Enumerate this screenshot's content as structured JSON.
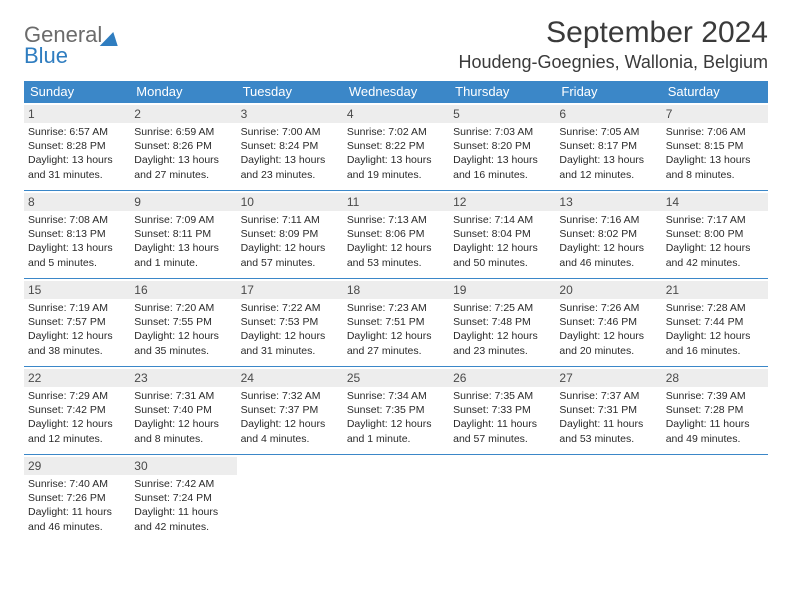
{
  "brand": {
    "line1": "General",
    "line2": "Blue"
  },
  "title": "September 2024",
  "location": "Houdeng-Goegnies, Wallonia, Belgium",
  "colors": {
    "header_bg": "#3b87c8",
    "header_text": "#ffffff",
    "day_band_bg": "#ededed",
    "text": "#2a2a2a",
    "brand_gray": "#6b6b6b",
    "brand_blue": "#2f7dc0"
  },
  "weekdays": [
    "Sunday",
    "Monday",
    "Tuesday",
    "Wednesday",
    "Thursday",
    "Friday",
    "Saturday"
  ],
  "weeks": [
    [
      {
        "n": "1",
        "sr": "Sunrise: 6:57 AM",
        "ss": "Sunset: 8:28 PM",
        "dl1": "Daylight: 13 hours",
        "dl2": "and 31 minutes."
      },
      {
        "n": "2",
        "sr": "Sunrise: 6:59 AM",
        "ss": "Sunset: 8:26 PM",
        "dl1": "Daylight: 13 hours",
        "dl2": "and 27 minutes."
      },
      {
        "n": "3",
        "sr": "Sunrise: 7:00 AM",
        "ss": "Sunset: 8:24 PM",
        "dl1": "Daylight: 13 hours",
        "dl2": "and 23 minutes."
      },
      {
        "n": "4",
        "sr": "Sunrise: 7:02 AM",
        "ss": "Sunset: 8:22 PM",
        "dl1": "Daylight: 13 hours",
        "dl2": "and 19 minutes."
      },
      {
        "n": "5",
        "sr": "Sunrise: 7:03 AM",
        "ss": "Sunset: 8:20 PM",
        "dl1": "Daylight: 13 hours",
        "dl2": "and 16 minutes."
      },
      {
        "n": "6",
        "sr": "Sunrise: 7:05 AM",
        "ss": "Sunset: 8:17 PM",
        "dl1": "Daylight: 13 hours",
        "dl2": "and 12 minutes."
      },
      {
        "n": "7",
        "sr": "Sunrise: 7:06 AM",
        "ss": "Sunset: 8:15 PM",
        "dl1": "Daylight: 13 hours",
        "dl2": "and 8 minutes."
      }
    ],
    [
      {
        "n": "8",
        "sr": "Sunrise: 7:08 AM",
        "ss": "Sunset: 8:13 PM",
        "dl1": "Daylight: 13 hours",
        "dl2": "and 5 minutes."
      },
      {
        "n": "9",
        "sr": "Sunrise: 7:09 AM",
        "ss": "Sunset: 8:11 PM",
        "dl1": "Daylight: 13 hours",
        "dl2": "and 1 minute."
      },
      {
        "n": "10",
        "sr": "Sunrise: 7:11 AM",
        "ss": "Sunset: 8:09 PM",
        "dl1": "Daylight: 12 hours",
        "dl2": "and 57 minutes."
      },
      {
        "n": "11",
        "sr": "Sunrise: 7:13 AM",
        "ss": "Sunset: 8:06 PM",
        "dl1": "Daylight: 12 hours",
        "dl2": "and 53 minutes."
      },
      {
        "n": "12",
        "sr": "Sunrise: 7:14 AM",
        "ss": "Sunset: 8:04 PM",
        "dl1": "Daylight: 12 hours",
        "dl2": "and 50 minutes."
      },
      {
        "n": "13",
        "sr": "Sunrise: 7:16 AM",
        "ss": "Sunset: 8:02 PM",
        "dl1": "Daylight: 12 hours",
        "dl2": "and 46 minutes."
      },
      {
        "n": "14",
        "sr": "Sunrise: 7:17 AM",
        "ss": "Sunset: 8:00 PM",
        "dl1": "Daylight: 12 hours",
        "dl2": "and 42 minutes."
      }
    ],
    [
      {
        "n": "15",
        "sr": "Sunrise: 7:19 AM",
        "ss": "Sunset: 7:57 PM",
        "dl1": "Daylight: 12 hours",
        "dl2": "and 38 minutes."
      },
      {
        "n": "16",
        "sr": "Sunrise: 7:20 AM",
        "ss": "Sunset: 7:55 PM",
        "dl1": "Daylight: 12 hours",
        "dl2": "and 35 minutes."
      },
      {
        "n": "17",
        "sr": "Sunrise: 7:22 AM",
        "ss": "Sunset: 7:53 PM",
        "dl1": "Daylight: 12 hours",
        "dl2": "and 31 minutes."
      },
      {
        "n": "18",
        "sr": "Sunrise: 7:23 AM",
        "ss": "Sunset: 7:51 PM",
        "dl1": "Daylight: 12 hours",
        "dl2": "and 27 minutes."
      },
      {
        "n": "19",
        "sr": "Sunrise: 7:25 AM",
        "ss": "Sunset: 7:48 PM",
        "dl1": "Daylight: 12 hours",
        "dl2": "and 23 minutes."
      },
      {
        "n": "20",
        "sr": "Sunrise: 7:26 AM",
        "ss": "Sunset: 7:46 PM",
        "dl1": "Daylight: 12 hours",
        "dl2": "and 20 minutes."
      },
      {
        "n": "21",
        "sr": "Sunrise: 7:28 AM",
        "ss": "Sunset: 7:44 PM",
        "dl1": "Daylight: 12 hours",
        "dl2": "and 16 minutes."
      }
    ],
    [
      {
        "n": "22",
        "sr": "Sunrise: 7:29 AM",
        "ss": "Sunset: 7:42 PM",
        "dl1": "Daylight: 12 hours",
        "dl2": "and 12 minutes."
      },
      {
        "n": "23",
        "sr": "Sunrise: 7:31 AM",
        "ss": "Sunset: 7:40 PM",
        "dl1": "Daylight: 12 hours",
        "dl2": "and 8 minutes."
      },
      {
        "n": "24",
        "sr": "Sunrise: 7:32 AM",
        "ss": "Sunset: 7:37 PM",
        "dl1": "Daylight: 12 hours",
        "dl2": "and 4 minutes."
      },
      {
        "n": "25",
        "sr": "Sunrise: 7:34 AM",
        "ss": "Sunset: 7:35 PM",
        "dl1": "Daylight: 12 hours",
        "dl2": "and 1 minute."
      },
      {
        "n": "26",
        "sr": "Sunrise: 7:35 AM",
        "ss": "Sunset: 7:33 PM",
        "dl1": "Daylight: 11 hours",
        "dl2": "and 57 minutes."
      },
      {
        "n": "27",
        "sr": "Sunrise: 7:37 AM",
        "ss": "Sunset: 7:31 PM",
        "dl1": "Daylight: 11 hours",
        "dl2": "and 53 minutes."
      },
      {
        "n": "28",
        "sr": "Sunrise: 7:39 AM",
        "ss": "Sunset: 7:28 PM",
        "dl1": "Daylight: 11 hours",
        "dl2": "and 49 minutes."
      }
    ],
    [
      {
        "n": "29",
        "sr": "Sunrise: 7:40 AM",
        "ss": "Sunset: 7:26 PM",
        "dl1": "Daylight: 11 hours",
        "dl2": "and 46 minutes."
      },
      {
        "n": "30",
        "sr": "Sunrise: 7:42 AM",
        "ss": "Sunset: 7:24 PM",
        "dl1": "Daylight: 11 hours",
        "dl2": "and 42 minutes."
      },
      null,
      null,
      null,
      null,
      null
    ]
  ]
}
